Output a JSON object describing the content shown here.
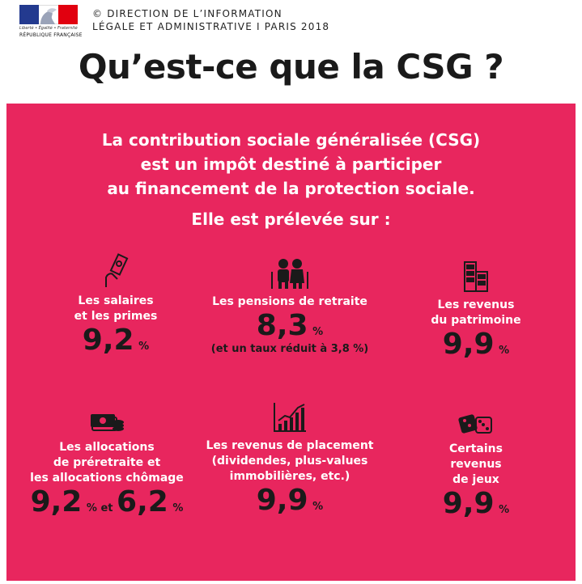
{
  "header": {
    "logo_motto": "Liberté • Égalité • Fraternité",
    "logo_republic": "RÉPUBLIQUE FRANÇAISE",
    "credit_line1": "© DIRECTION DE L’INFORMATION",
    "credit_line2": "LÉGALE ET ADMINISTRATIVE I PARIS 2018"
  },
  "title": "Qu’est-ce que la CSG ?",
  "lead": {
    "line1": "La contribution sociale généralisée (CSG)",
    "line2": "est un impôt destiné à participer",
    "line3": "au financement de la protection sociale.",
    "line4": "Elle est prélevée sur :"
  },
  "items": [
    {
      "icon": "hand-banknote-icon",
      "label1": "Les salaires",
      "label2": "et les primes",
      "value": "9,2",
      "unit": "%"
    },
    {
      "icon": "elderly-couple-icon",
      "label1": "Les pensions de retraite",
      "value": "8,3",
      "unit": "%",
      "note": "(et un taux réduit à 3,8 %)"
    },
    {
      "icon": "buildings-icon",
      "label1": "Les revenus",
      "label2": "du patrimoine",
      "value": "9,9",
      "unit": "%"
    },
    {
      "icon": "banknotes-coins-icon",
      "label1": "Les allocations",
      "label2": "de préretraite et",
      "label3": "les allocations chômage",
      "value": "9,2",
      "unit": "%",
      "conj": "et",
      "value2": "6,2",
      "unit2": "%"
    },
    {
      "icon": "rising-chart-icon",
      "label1": "Les revenus de placement",
      "label2": "(dividendes, plus-values",
      "label3": "immobilières, etc.)",
      "value": "9,9",
      "unit": "%"
    },
    {
      "icon": "dice-icon",
      "label1": "Certains",
      "label2": "revenus",
      "label3": "de jeux",
      "value": "9,9",
      "unit": "%"
    }
  ],
  "colors": {
    "panel": "#e8265e",
    "dark": "#1a1a1a",
    "flag_blue": "#233a8f",
    "flag_red": "#e1000f"
  }
}
